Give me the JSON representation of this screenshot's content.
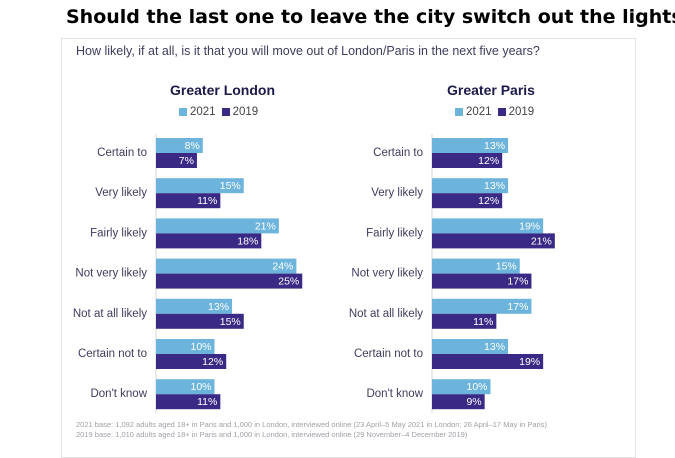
{
  "title": "Should the last one to leave the city switch out the lights?",
  "subtitle": "How likely, if at all, is it that you will move out of London/Paris in the next five years?",
  "colors": {
    "series_2021": "#6cb4dc",
    "series_2019": "#3b2a85",
    "label_2021": "#ffffff",
    "label_2019": "#ffffff"
  },
  "chart_data": [
    {
      "type": "bar",
      "orientation": "horizontal",
      "title": "Greater London",
      "categories": [
        "Certain to",
        "Very likely",
        "Fairly likely",
        "Not very likely",
        "Not at all likely",
        "Certain not to",
        "Don't know"
      ],
      "series": [
        {
          "name": "2021",
          "values": [
            8,
            15,
            21,
            24,
            13,
            10,
            10
          ]
        },
        {
          "name": "2019",
          "values": [
            7,
            11,
            18,
            25,
            15,
            12,
            11
          ]
        }
      ],
      "unit": "%"
    },
    {
      "type": "bar",
      "orientation": "horizontal",
      "title": "Greater Paris",
      "categories": [
        "Certain to",
        "Very likely",
        "Fairly likely",
        "Not very likely",
        "Not at all likely",
        "Certain not to",
        "Don't know"
      ],
      "series": [
        {
          "name": "2021",
          "values": [
            13,
            13,
            19,
            15,
            17,
            13,
            10
          ]
        },
        {
          "name": "2019",
          "values": [
            12,
            12,
            21,
            17,
            11,
            19,
            9
          ]
        }
      ],
      "unit": "%"
    }
  ],
  "footnotes": [
    "2021 base: 1,092 adults aged 18+ in Paris and 1,000 in London, interviewed online (23 April–5 May 2021 in London; 26 April–17 May in Paris)",
    "2019 base: 1,010 adults aged 18+ in Paris and 1,000 in London, interviewed online (29 November–4 December 2019)"
  ]
}
